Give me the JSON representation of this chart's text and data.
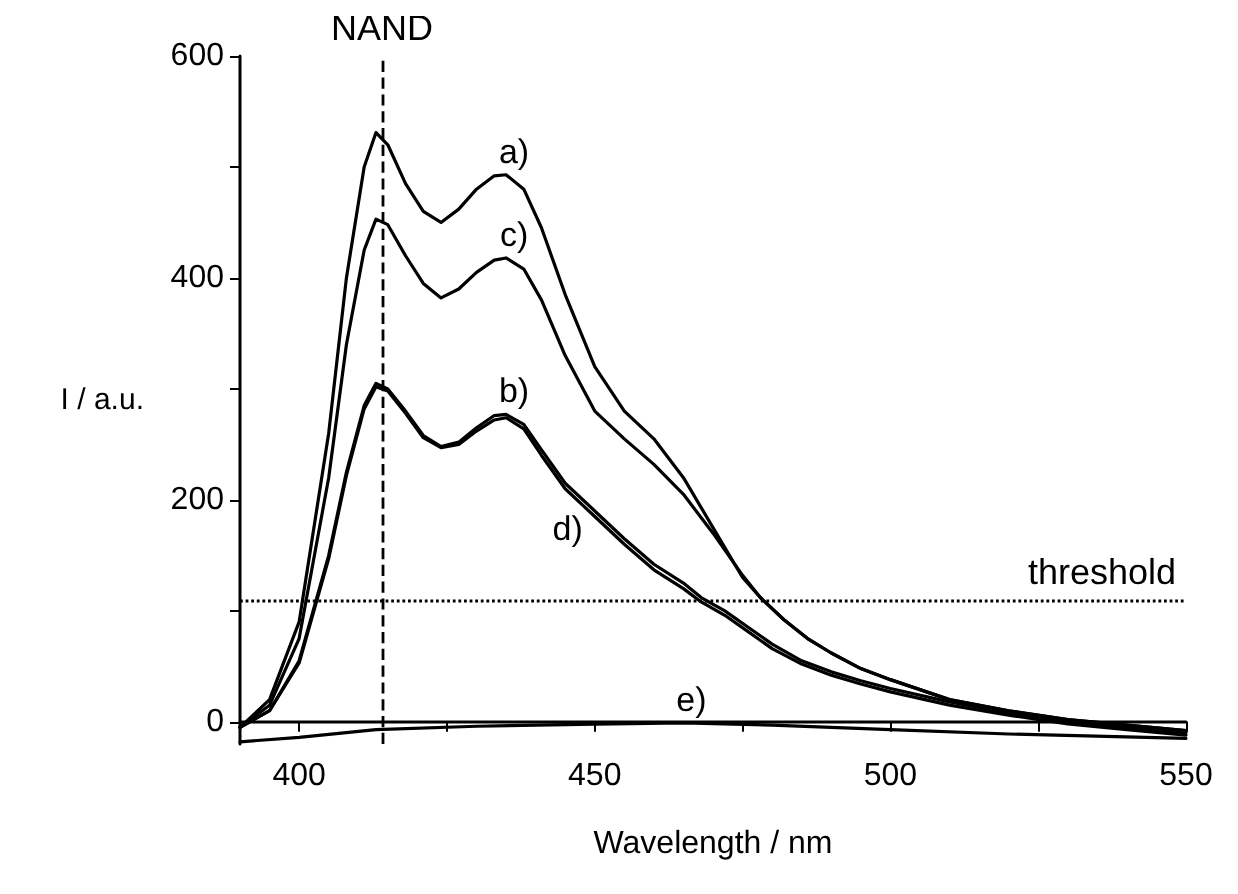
{
  "chart_data": {
    "type": "line",
    "xlabel": "Wavelength / nm",
    "ylabel": "I / a.u.",
    "xlim": [
      390,
      550
    ],
    "xticks": [
      400,
      {
        "value": 425,
        "label": null
      },
      450,
      {
        "value": 475,
        "label": null
      },
      500,
      {
        "value": 525,
        "label": null
      },
      550
    ],
    "ylim": [
      -20,
      600
    ],
    "yticks": [
      0,
      {
        "value": 100,
        "label": null
      },
      200,
      {
        "value": 300,
        "label": null
      },
      400,
      {
        "value": 500,
        "label": null
      },
      600
    ],
    "grid": false,
    "legend": false,
    "marker": "none",
    "line_style": "solid",
    "series": [
      {
        "name": "a)",
        "color": "#000000",
        "x": [
          390,
          395,
          400,
          405,
          408,
          411,
          413,
          415,
          418,
          421,
          424,
          427,
          430,
          433,
          435,
          438,
          441,
          445,
          450,
          455,
          460,
          465,
          470,
          475,
          478,
          482,
          486,
          490,
          495,
          500,
          510,
          520,
          530,
          540,
          550
        ],
        "values": [
          -5,
          20,
          90,
          260,
          400,
          500,
          531,
          520,
          485,
          460,
          450,
          462,
          480,
          492,
          493,
          480,
          445,
          385,
          320,
          280,
          255,
          220,
          175,
          130,
          112,
          92,
          75,
          62,
          48,
          38,
          20,
          10,
          2,
          -3,
          -8
        ]
      },
      {
        "name": "c)",
        "color": "#000000",
        "x": [
          390,
          395,
          400,
          405,
          408,
          411,
          413,
          415,
          418,
          421,
          424,
          427,
          430,
          433,
          435,
          438,
          441,
          445,
          450,
          455,
          460,
          465,
          470,
          475,
          478,
          482,
          486,
          490,
          495,
          500,
          510,
          520,
          530,
          540,
          550
        ],
        "values": [
          -5,
          15,
          75,
          220,
          340,
          425,
          453,
          448,
          420,
          395,
          382,
          390,
          405,
          416,
          418,
          408,
          380,
          330,
          280,
          255,
          232,
          205,
          170,
          132,
          112,
          92,
          75,
          62,
          48,
          38,
          20,
          10,
          2,
          -3,
          -8
        ]
      },
      {
        "name": "b)",
        "color": "#000000",
        "x": [
          390,
          395,
          400,
          405,
          408,
          411,
          413,
          415,
          418,
          421,
          424,
          427,
          430,
          433,
          435,
          438,
          441,
          445,
          450,
          455,
          460,
          465,
          468,
          472,
          476,
          480,
          485,
          490,
          495,
          500,
          510,
          520,
          530,
          540,
          550
        ],
        "values": [
          -5,
          10,
          55,
          150,
          225,
          285,
          305,
          300,
          280,
          258,
          248,
          252,
          265,
          276,
          277,
          268,
          245,
          215,
          190,
          165,
          142,
          125,
          112,
          100,
          85,
          70,
          55,
          45,
          37,
          30,
          18,
          8,
          0,
          -5,
          -10
        ]
      },
      {
        "name": "d)",
        "color": "#000000",
        "x": [
          390,
          395,
          400,
          405,
          408,
          411,
          413,
          415,
          418,
          421,
          424,
          427,
          430,
          433,
          435,
          438,
          441,
          445,
          450,
          455,
          460,
          465,
          468,
          472,
          476,
          480,
          485,
          490,
          495,
          500,
          510,
          520,
          530,
          540,
          550
        ],
        "values": [
          -5,
          10,
          53,
          147,
          222,
          282,
          302,
          298,
          278,
          256,
          247,
          250,
          262,
          272,
          274,
          264,
          240,
          210,
          185,
          160,
          137,
          120,
          108,
          96,
          81,
          66,
          52,
          42,
          34,
          27,
          15,
          6,
          -2,
          -7,
          -12
        ]
      },
      {
        "name": "e)",
        "color": "#000000",
        "x": [
          390,
          400,
          413,
          430,
          450,
          465,
          480,
          500,
          520,
          550
        ],
        "values": [
          -18,
          -14,
          -7,
          -4,
          -2,
          -1,
          -3,
          -7,
          -11,
          -15
        ]
      }
    ],
    "ref_lines": [
      {
        "axis": "x",
        "value": 414,
        "label": "NAND",
        "line_style": "dashed"
      },
      {
        "axis": "y",
        "value": 110,
        "label": "threshold",
        "line_style": "dotted"
      }
    ]
  }
}
